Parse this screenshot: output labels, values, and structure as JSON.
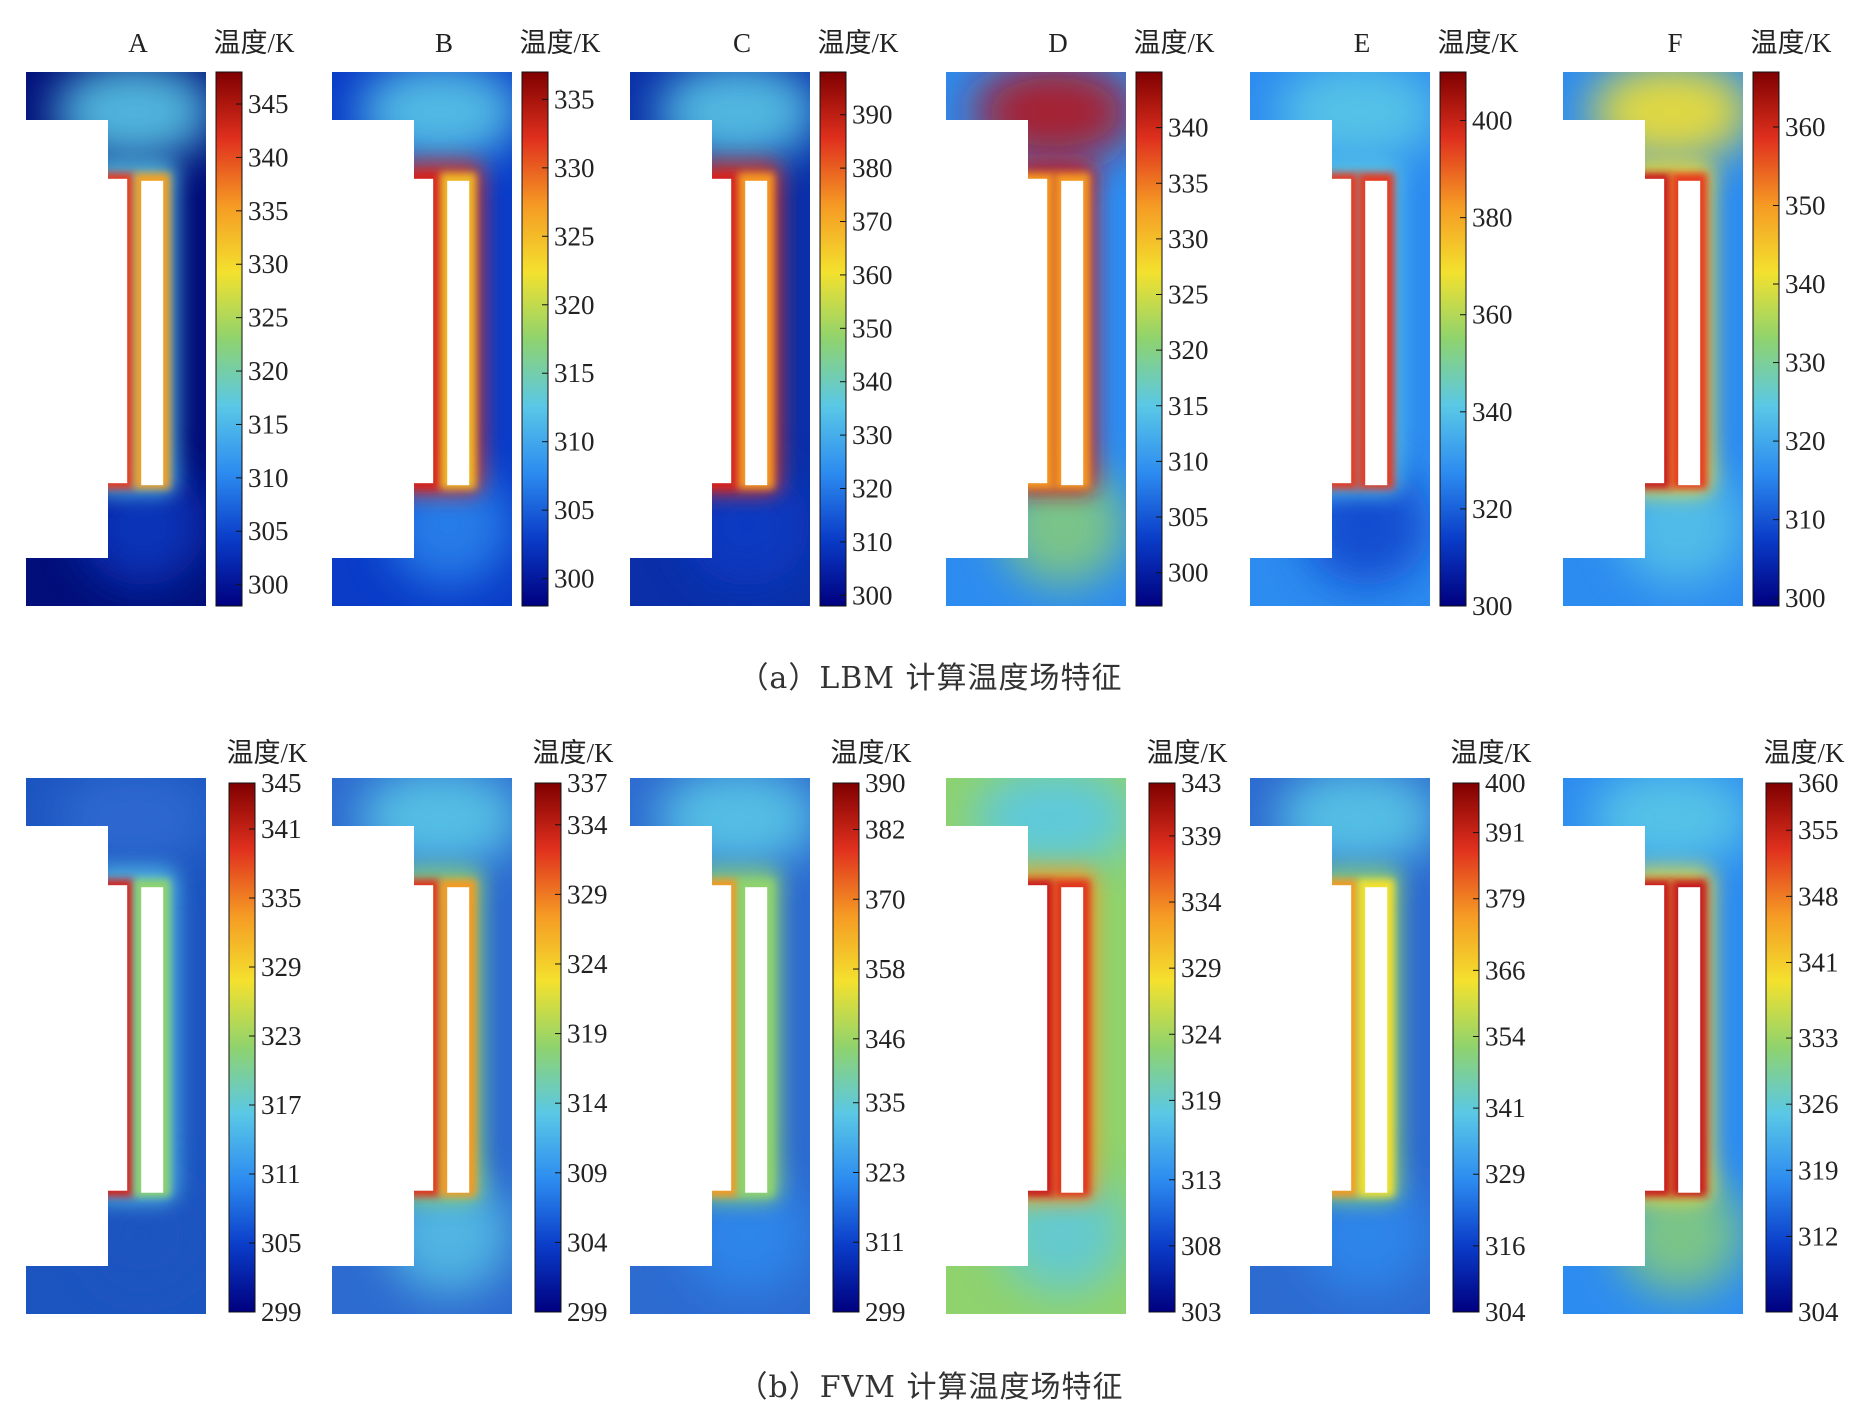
{
  "colorbar_title": "温度/K",
  "captions": {
    "a": "（a）LBM 计算温度场特征",
    "b": "（b）FVM 计算温度场特征"
  },
  "colormap": [
    "#00007f",
    "#0a3cc8",
    "#2d8cf0",
    "#5ac8e6",
    "#8fd36e",
    "#f4e12e",
    "#f59a24",
    "#e0301e",
    "#7f0000"
  ],
  "chart_data": [
    {
      "type": "heatmap",
      "row": "a",
      "label": "A",
      "colorbar_title": "温度/K",
      "ticks": [
        345,
        340,
        335,
        330,
        325,
        320,
        315,
        310,
        305,
        300
      ],
      "range": [
        298,
        348
      ]
    },
    {
      "type": "heatmap",
      "row": "a",
      "label": "B",
      "colorbar_title": "温度/K",
      "ticks": [
        335,
        330,
        325,
        320,
        315,
        310,
        305,
        300
      ],
      "range": [
        298,
        337
      ]
    },
    {
      "type": "heatmap",
      "row": "a",
      "label": "C",
      "colorbar_title": "温度/K",
      "ticks": [
        390,
        380,
        370,
        360,
        350,
        340,
        330,
        320,
        310,
        300
      ],
      "range": [
        298,
        398
      ]
    },
    {
      "type": "heatmap",
      "row": "a",
      "label": "D",
      "colorbar_title": "温度/K",
      "ticks": [
        340,
        335,
        330,
        325,
        320,
        315,
        310,
        305,
        300
      ],
      "range": [
        297,
        345
      ]
    },
    {
      "type": "heatmap",
      "row": "a",
      "label": "E",
      "colorbar_title": "温度/K",
      "ticks": [
        400,
        380,
        360,
        340,
        320,
        300
      ],
      "range": [
        300,
        410
      ]
    },
    {
      "type": "heatmap",
      "row": "a",
      "label": "F",
      "colorbar_title": "温度/K",
      "ticks": [
        360,
        350,
        340,
        330,
        320,
        310,
        300
      ],
      "range": [
        299,
        367
      ]
    },
    {
      "type": "heatmap",
      "row": "b",
      "label": "",
      "colorbar_title": "温度/K",
      "ticks": [
        "345",
        "341",
        "335",
        "329",
        "323",
        "317",
        "311",
        "305",
        "299"
      ],
      "range": [
        299,
        345
      ]
    },
    {
      "type": "heatmap",
      "row": "b",
      "label": "",
      "colorbar_title": "温度/K",
      "ticks": [
        "337",
        "334",
        "329",
        "324",
        "319",
        "314",
        "309",
        "304",
        "299"
      ],
      "range": [
        299,
        337
      ]
    },
    {
      "type": "heatmap",
      "row": "b",
      "label": "",
      "colorbar_title": "温度/K",
      "ticks": [
        "390",
        "382",
        "370",
        "358",
        "346",
        "335",
        "323",
        "311",
        "299"
      ],
      "range": [
        299,
        390
      ]
    },
    {
      "type": "heatmap",
      "row": "b",
      "label": "",
      "colorbar_title": "温度/K",
      "ticks": [
        "343",
        "339",
        "334",
        "329",
        "324",
        "319",
        "313",
        "308",
        "303"
      ],
      "range": [
        303,
        343
      ]
    },
    {
      "type": "heatmap",
      "row": "b",
      "label": "",
      "colorbar_title": "温度/K",
      "ticks": [
        "400",
        "391",
        "379",
        "366",
        "354",
        "341",
        "329",
        "316",
        "304"
      ],
      "range": [
        304,
        400
      ]
    },
    {
      "type": "heatmap",
      "row": "b",
      "label": "",
      "colorbar_title": "温度/K",
      "ticks": [
        "360",
        "355",
        "348",
        "341",
        "333",
        "326",
        "319",
        "312",
        "304"
      ],
      "range": [
        304,
        360
      ]
    }
  ]
}
